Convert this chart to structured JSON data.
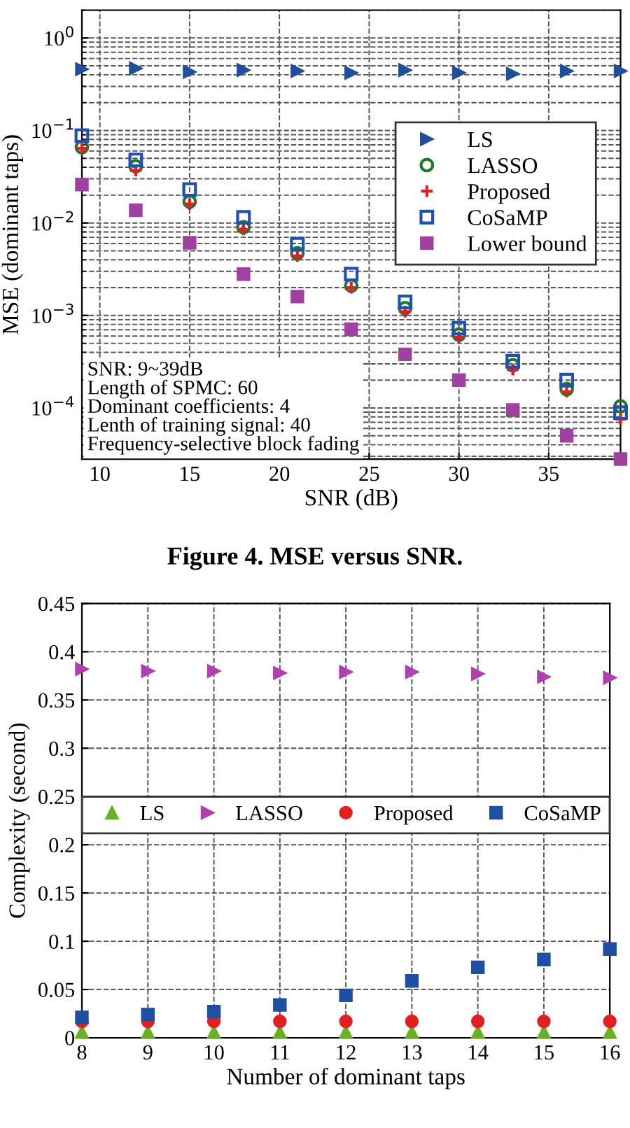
{
  "chart_data": [
    {
      "type": "scatter",
      "xlabel": "SNR (dB)",
      "ylabel": "MSE (dominant taps)",
      "x": [
        9,
        12,
        15,
        18,
        21,
        24,
        27,
        30,
        33,
        36,
        39
      ],
      "series": [
        {
          "name": "LS",
          "color": "#1f4e9c",
          "marker": "triangle-right",
          "values": [
            0.46,
            0.47,
            0.43,
            0.45,
            0.44,
            0.42,
            0.45,
            0.42,
            0.41,
            0.44,
            0.44
          ]
        },
        {
          "name": "LASSO",
          "color": "#1a7a2a",
          "marker": "circle-open",
          "values": [
            0.066,
            0.041,
            0.017,
            0.009,
            0.0047,
            0.0021,
            0.0012,
            0.00062,
            0.00029,
            0.00016,
            0.000104
          ]
        },
        {
          "name": "Proposed",
          "color": "#e02020",
          "marker": "cross",
          "values": [
            0.064,
            0.037,
            0.016,
            0.0085,
            0.0044,
            0.002,
            0.0011,
            0.00058,
            0.00026,
            0.00015,
            7.6e-05
          ]
        },
        {
          "name": "CoSaMP",
          "color": "#2050b0",
          "marker": "square-open",
          "values": [
            0.088,
            0.048,
            0.023,
            0.0115,
            0.0059,
            0.0028,
            0.0014,
            0.00073,
            0.00032,
            0.0002,
            8.9e-05
          ]
        },
        {
          "name": "Lower bound",
          "color": "#a040a0",
          "marker": "square",
          "values": [
            0.026,
            0.0137,
            0.0061,
            0.0028,
            0.0016,
            0.00071,
            0.00038,
            0.0002,
            9.5e-05,
            5e-05,
            2.8e-05
          ]
        }
      ],
      "log": "y",
      "xlim": [
        9,
        39
      ],
      "xticks": [
        10,
        15,
        20,
        25,
        30,
        35
      ],
      "ylim": [
        2.8e-05,
        2
      ],
      "yticks": [
        {
          "value": 0.0001,
          "label": "10$^{−4}$"
        },
        {
          "value": 0.001,
          "label": "10$^{−3}$"
        },
        {
          "value": 0.01,
          "label": "10$^{−2}$"
        },
        {
          "value": 0.1,
          "label": "10$^{−1}$"
        },
        {
          "value": 1,
          "label": "10$^{0}$"
        }
      ],
      "grid": true,
      "legend": "right",
      "annotations": [
        "SNR: 9~39dB",
        "Length of SPMC: 60",
        "Dominant coefficients: 4",
        "Lenth of training signal: 40",
        "Frequency-selective block fading",
        "Figure 4. MSE versus SNR."
      ]
    },
    {
      "type": "scatter",
      "xlabel": "Number of dominant taps",
      "ylabel": "Complexity (second)",
      "x": [
        8,
        9,
        10,
        11,
        12,
        13,
        14,
        15,
        16
      ],
      "series": [
        {
          "name": "LS",
          "color": "#6ab023",
          "marker": "triangle",
          "values": [
            0.006,
            0.006,
            0.006,
            0.006,
            0.006,
            0.006,
            0.006,
            0.006,
            0.006
          ]
        },
        {
          "name": "LASSO",
          "color": "#b040b0",
          "marker": "triangle-right",
          "values": [
            0.382,
            0.38,
            0.38,
            0.378,
            0.379,
            0.379,
            0.377,
            0.374,
            0.373
          ]
        },
        {
          "name": "Proposed",
          "color": "#e02020",
          "marker": "circle",
          "values": [
            0.017,
            0.017,
            0.017,
            0.017,
            0.017,
            0.017,
            0.017,
            0.017,
            0.017
          ]
        },
        {
          "name": "CoSaMP",
          "color": "#1f4fa0",
          "marker": "square",
          "values": [
            0.021,
            0.024,
            0.027,
            0.034,
            0.044,
            0.059,
            0.073,
            0.081,
            0.092
          ]
        }
      ],
      "xlim": [
        8,
        16
      ],
      "xticks": [
        8,
        9,
        10,
        11,
        12,
        13,
        14,
        15,
        16
      ],
      "ylim": [
        0,
        0.45
      ],
      "yticks": [
        0,
        0.05,
        0.1,
        0.15,
        0.2,
        0.25,
        0.3,
        0.35,
        0.4,
        0.45
      ],
      "grid": true,
      "legend": "center"
    }
  ]
}
